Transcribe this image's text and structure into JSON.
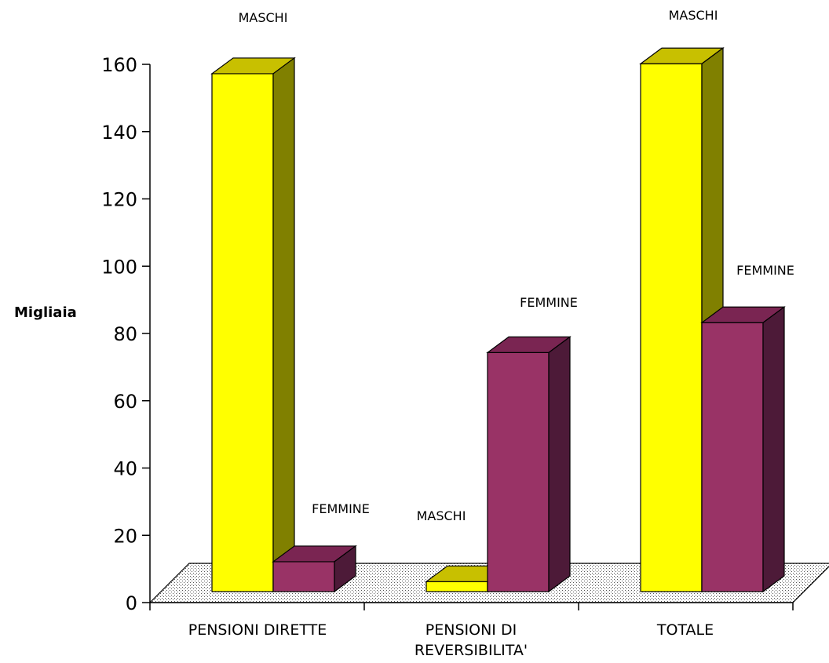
{
  "chart_data": {
    "type": "bar",
    "categories": [
      [
        "PENSIONI DIRETTE"
      ],
      [
        "PENSIONI DI",
        "REVERSIBILITA'"
      ],
      [
        "TOTALE"
      ]
    ],
    "series": [
      {
        "label": "MASCHI",
        "color": "#FFFF00",
        "top_color": "#C8C000",
        "side_color": "#808000",
        "values": [
          156,
          3,
          159
        ]
      },
      {
        "label": "FEMMINE",
        "color": "#993366",
        "top_color": "#7A2552",
        "side_color": "#4D1A38",
        "values": [
          9,
          72,
          81
        ]
      }
    ],
    "ylabel": "Migliaia",
    "ylim": [
      0,
      160
    ],
    "yticks": [
      0,
      20,
      40,
      60,
      80,
      100,
      120,
      140,
      160
    ],
    "grid": false,
    "legend": "none",
    "floor_pattern": "dotted"
  }
}
